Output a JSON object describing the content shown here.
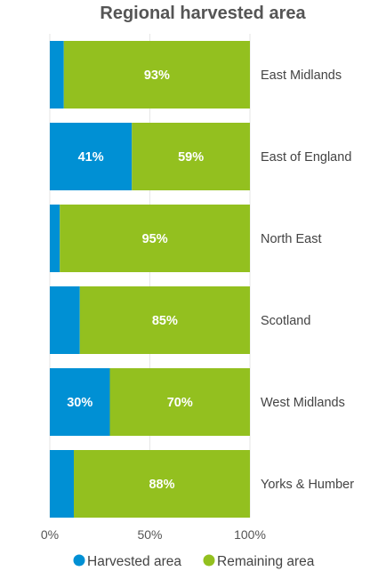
{
  "chart_data": {
    "type": "bar",
    "orientation": "horizontal",
    "stacked": "percent",
    "title": "Regional harvested area",
    "categories": [
      "East Midlands",
      "East of England",
      "North East",
      "Scotland",
      "West Midlands",
      "Yorks & Humber"
    ],
    "series": [
      {
        "name": "Harvested area",
        "color": "#0090d4",
        "values": [
          7,
          41,
          5,
          15,
          30,
          12
        ],
        "labels": [
          "",
          "41%",
          "",
          "",
          "30%",
          ""
        ]
      },
      {
        "name": "Remaining area",
        "color": "#93c01f",
        "values": [
          93,
          59,
          95,
          85,
          70,
          88
        ],
        "labels": [
          "93%",
          "59%",
          "95%",
          "85%",
          "70%",
          "88%"
        ]
      }
    ],
    "xlim": [
      0,
      100
    ],
    "x_ticks": [
      0,
      50,
      100
    ],
    "x_tick_labels": [
      "0%",
      "50%",
      "100%"
    ],
    "grid": true,
    "legend": "bottom",
    "category_labels_position": "right"
  }
}
